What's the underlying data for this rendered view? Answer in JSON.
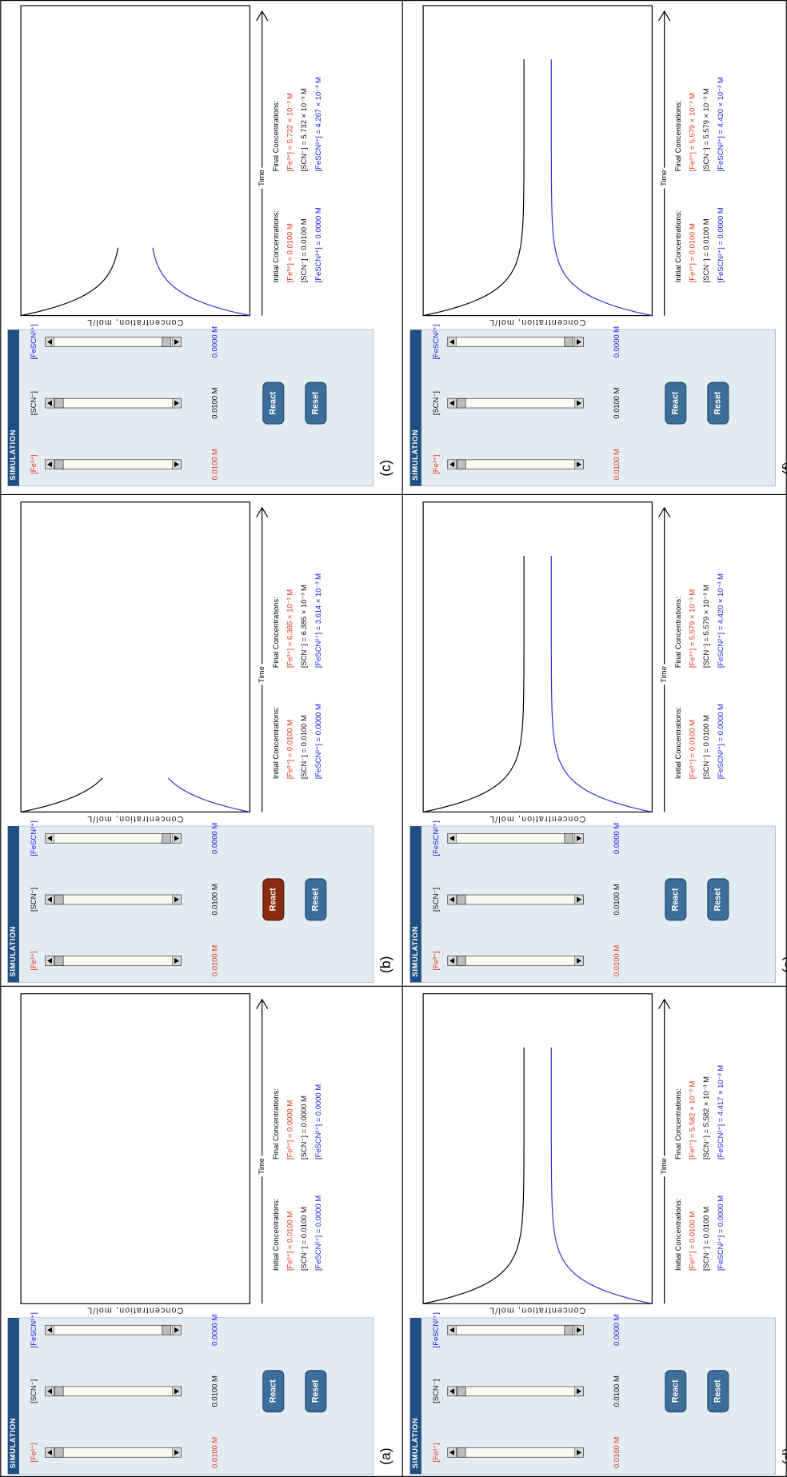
{
  "panels": [
    {
      "label": "(a)",
      "title": "SIMULATION",
      "species": [
        "[Fe³⁺]",
        "[SCN⁻]",
        "[FeSCN²⁺]"
      ],
      "slider_values": [
        "0.0100 M",
        "0.0100 M",
        "0.0000 M"
      ],
      "buttons": [
        "React",
        "Reset"
      ],
      "button_active": [
        false,
        false
      ],
      "y_label": "Concentration, mol/L",
      "x_label": "Time",
      "initial": {
        "title": "Initial Concentrations:",
        "lines": [
          "[Fe³⁺] = 0.0100 M",
          "[SCN⁻] = 0.0100 M",
          "[FeSCN²⁺] = 0.0000 M"
        ]
      },
      "final": {
        "title": "Final Concentrations:",
        "lines": [
          "[Fe³⁺] = 0.0000 M",
          "[SCN⁻] = 0.0000 M",
          "[FeSCN²⁺] = 0.0000 M"
        ]
      }
    },
    {
      "label": "(b)",
      "title": "SIMULATION",
      "species": [
        "[Fe³⁺]",
        "[SCN⁻]",
        "[FeSCN²⁺]"
      ],
      "slider_values": [
        "0.0100 M",
        "0.0100 M",
        "0.0000 M"
      ],
      "buttons": [
        "React",
        "Reset"
      ],
      "button_active": [
        true,
        false
      ],
      "y_label": "Concentration, mol/L",
      "x_label": "Time",
      "initial": {
        "title": "Initial Concentrations:",
        "lines": [
          "[Fe³⁺] = 0.0100 M",
          "[SCN⁻] = 0.0100 M",
          "[FeSCN²⁺] = 0.0000 M"
        ]
      },
      "final": {
        "title": "Final Concentrations:",
        "lines": [
          "[Fe³⁺] = 6.385 × 10⁻³ M",
          "[SCN⁻] = 6.385 × 10⁻³ M",
          "[FeSCN²⁺] = 3.614 × 10⁻³ M"
        ]
      }
    },
    {
      "label": "(c)",
      "title": "SIMULATION",
      "species": [
        "[Fe³⁺]",
        "[SCN⁻]",
        "[FeSCN²⁺]"
      ],
      "slider_values": [
        "0.0100 M",
        "0.0100 M",
        "0.0000 M"
      ],
      "buttons": [
        "React",
        "Reset"
      ],
      "button_active": [
        false,
        false
      ],
      "y_label": "Concentration, mol/L",
      "x_label": "Time",
      "initial": {
        "title": "Initial Concentrations:",
        "lines": [
          "[Fe³⁺] = 0.0100 M",
          "[SCN⁻] = 0.0100 M",
          "[FeSCN²⁺] = 0.0000 M"
        ]
      },
      "final": {
        "title": "Final Concentrations:",
        "lines": [
          "[Fe³⁺] = 5.732 × 10⁻³ M",
          "[SCN⁻] = 5.732 × 10⁻³ M",
          "[FeSCN²⁺] = 4.267 × 10⁻³ M"
        ]
      }
    },
    {
      "label": "(d)",
      "title": "SIMULATION",
      "species": [
        "[Fe³⁺]",
        "[SCN⁻]",
        "[FeSCN²⁺]"
      ],
      "slider_values": [
        "0.0100 M",
        "0.0100 M",
        "0.0000 M"
      ],
      "buttons": [
        "React",
        "Reset"
      ],
      "button_active": [
        false,
        false
      ],
      "y_label": "Concentration, mol/L",
      "x_label": "Time",
      "initial": {
        "title": "Initial Concentrations:",
        "lines": [
          "[Fe³⁺] = 0.0100 M",
          "[SCN⁻] = 0.0100 M",
          "[FeSCN²⁺] = 0.0000 M"
        ]
      },
      "final": {
        "title": "Final Concentrations:",
        "lines": [
          "[Fe³⁺] = 5.582 × 10⁻³ M",
          "[SCN⁻] = 5.582 × 10⁻³ M",
          "[FeSCN²⁺] = 4.417 × 10⁻³ M"
        ]
      }
    },
    {
      "label": "(e)",
      "title": "SIMULATION",
      "species": [
        "[Fe³⁺]",
        "[SCN⁻]",
        "[FeSCN²⁺]"
      ],
      "slider_values": [
        "0.0100 M",
        "0.0100 M",
        "0.0000 M"
      ],
      "buttons": [
        "React",
        "Reset"
      ],
      "button_active": [
        false,
        false
      ],
      "y_label": "Concentration, mol/L",
      "x_label": "Time",
      "initial": {
        "title": "Initial Concentrations:",
        "lines": [
          "[Fe³⁺] = 0.0100 M",
          "[SCN⁻] = 0.0100 M",
          "[FeSCN²⁺] = 0.0000 M"
        ]
      },
      "final": {
        "title": "Final Concentrations:",
        "lines": [
          "[Fe³⁺] = 5.579 × 10⁻³ M",
          "[SCN⁻] = 5.579 × 10⁻³ M",
          "[FeSCN²⁺] = 4.420 × 10⁻³ M"
        ]
      }
    },
    {
      "label": "(f)",
      "title": "SIMULATION",
      "species": [
        "[Fe³⁺]",
        "[SCN⁻]",
        "[FeSCN²⁺]"
      ],
      "slider_values": [
        "0.0100 M",
        "0.0100 M",
        "0.0000 M"
      ],
      "buttons": [
        "React",
        "Reset"
      ],
      "button_active": [
        false,
        false
      ],
      "y_label": "Concentration, mol/L",
      "x_label": "Time",
      "initial": {
        "title": "Initial Concentrations:",
        "lines": [
          "[Fe³⁺] = 0.0100 M",
          "[SCN⁻] = 0.0100 M",
          "[FeSCN²⁺] = 0.0000 M"
        ]
      },
      "final": {
        "title": "Final Concentrations:",
        "lines": [
          "[Fe³⁺] = 5.579 × 10⁻³ M",
          "[SCN⁻] = 5.579 × 10⁻³ M",
          "[FeSCN²⁺] = 4.420 × 10⁻³ M"
        ]
      }
    }
  ]
}
